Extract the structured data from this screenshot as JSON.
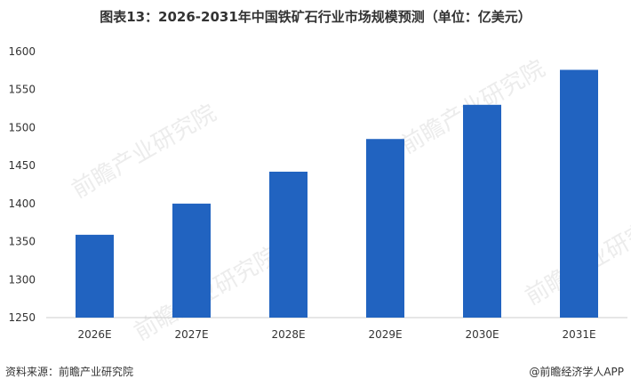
{
  "page": {
    "title": "图表13：2026-2031年中国铁矿石行业市场规模预测（单位：亿美元）",
    "source": "资料来源：前瞻产业研究院",
    "brand": "@前瞻经济学人APP",
    "watermark": "前瞻产业研究院"
  },
  "colors": {
    "bar": "#2163C0",
    "axis": "#CCCCCC",
    "text": "#333333"
  },
  "chart_data": {
    "type": "bar",
    "categories": [
      "2026E",
      "2027E",
      "2028E",
      "2029E",
      "2030E",
      "2031E"
    ],
    "values": [
      1359,
      1400,
      1442,
      1485,
      1530,
      1576
    ],
    "ylim": [
      1250,
      1600
    ],
    "yticks": [
      1250,
      1300,
      1350,
      1400,
      1450,
      1500,
      1550,
      1600
    ],
    "grid": false,
    "legend": "none"
  }
}
